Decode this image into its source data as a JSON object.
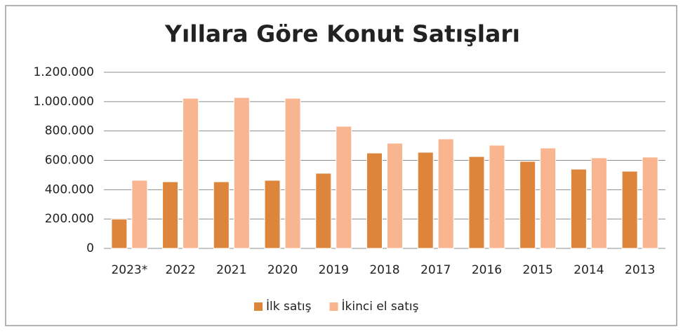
{
  "chart_data": {
    "type": "bar",
    "title": "Yıllara Göre Konut Satışları",
    "categories": [
      "2023*",
      "2022",
      "2021",
      "2020",
      "2019",
      "2018",
      "2017",
      "2016",
      "2015",
      "2014",
      "2013"
    ],
    "series": [
      {
        "name": "İlk satış",
        "color": "#dc853b",
        "values": [
          200000,
          454000,
          454000,
          464000,
          512000,
          650000,
          655000,
          626000,
          593000,
          540000,
          526000
        ]
      },
      {
        "name": "İkinci el satış",
        "color": "#f8b58f",
        "values": [
          464000,
          1023000,
          1028000,
          1023000,
          832000,
          717000,
          746000,
          703000,
          684000,
          617000,
          622000
        ]
      }
    ],
    "ylim": [
      0,
      1200000
    ],
    "yticks": [
      0,
      {
        "value": 200000,
        "label": "200.000"
      },
      {
        "value": 400000,
        "label": "400.000"
      },
      {
        "value": 600000,
        "label": "600.000"
      },
      {
        "value": 800000,
        "label": "800.000"
      },
      {
        "value": 1000000,
        "label": "1.000.000"
      },
      {
        "value": 1200000,
        "label": "1.200.000"
      }
    ],
    "grid": true,
    "legend": "bottom"
  }
}
